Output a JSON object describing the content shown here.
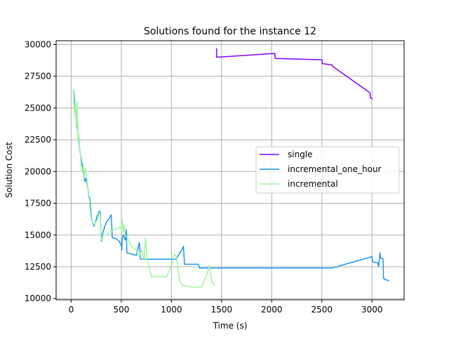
{
  "chart_data": {
    "type": "line",
    "title": "Solutions found for the instance 12",
    "xlabel": "Time (s)",
    "ylabel": "Solution Cost",
    "xlim": [
      -150,
      3320
    ],
    "ylim": [
      9900,
      30300
    ],
    "xticks": [
      0,
      500,
      1000,
      1500,
      2000,
      2500,
      3000
    ],
    "yticks": [
      10000,
      12500,
      15000,
      17500,
      20000,
      22500,
      25000,
      27500,
      30000
    ],
    "grid": true,
    "legend_position": "center-right",
    "series": [
      {
        "name": "single",
        "color": "#7f00ff",
        "x": [
          1450,
          1450,
          1455,
          2030,
          2035,
          2500,
          2505,
          2600,
          2605,
          2980,
          2985,
          3005
        ],
        "y": [
          29700,
          29000,
          29000,
          29300,
          28900,
          28800,
          28500,
          28400,
          28300,
          26200,
          25800,
          25700
        ]
      },
      {
        "name": "incremental_one_hour",
        "color": "#1996f3",
        "x": [
          20,
          30,
          38,
          45,
          52,
          60,
          68,
          75,
          82,
          90,
          100,
          110,
          120,
          130,
          140,
          150,
          160,
          170,
          180,
          185,
          190,
          200,
          210,
          230,
          260,
          280,
          290,
          300,
          305,
          310,
          320,
          350,
          380,
          400,
          410,
          450,
          480,
          490,
          500,
          505,
          510,
          520,
          540,
          550,
          555,
          560,
          600,
          650,
          680,
          690,
          700,
          720,
          1050,
          1060,
          1100,
          1120,
          1130,
          1270,
          1280,
          2600,
          3000,
          3005,
          3060,
          3065,
          3080,
          3085,
          3110,
          3115,
          3130,
          3170
        ],
        "y": [
          26500,
          26000,
          25000,
          24500,
          24000,
          23500,
          23000,
          22500,
          22000,
          21500,
          21000,
          20500,
          20000,
          19500,
          19200,
          19500,
          19000,
          18500,
          17800,
          18000,
          17500,
          16500,
          16000,
          15700,
          16500,
          16900,
          16800,
          14500,
          14600,
          15000,
          15300,
          16000,
          16300,
          16600,
          14800,
          14700,
          14500,
          14300,
          14200,
          13800,
          14800,
          15000,
          14600,
          15400,
          13600,
          13600,
          13500,
          13400,
          14400,
          13100,
          13100,
          13100,
          13100,
          13300,
          13800,
          14100,
          12700,
          12700,
          12400,
          12400,
          13300,
          12900,
          12800,
          12500,
          13600,
          13200,
          13100,
          11600,
          11500,
          11400
        ]
      },
      {
        "name": "incremental",
        "color": "#9ef49e",
        "x": [
          20,
          28,
          36,
          44,
          52,
          60,
          68,
          76,
          84,
          92,
          100,
          110,
          120,
          130,
          140,
          150,
          160,
          170,
          180,
          190,
          200,
          210,
          230,
          260,
          280,
          290,
          300,
          320,
          350,
          400,
          450,
          500,
          510,
          520,
          530,
          540,
          560,
          600,
          650,
          680,
          700,
          730,
          740,
          760,
          800,
          950,
          1000,
          1030,
          1050,
          1080,
          1100,
          1150,
          1200,
          1300,
          1320,
          1350,
          1380,
          1400,
          1420,
          1430
        ],
        "y": [
          26500,
          25500,
          24500,
          25200,
          23500,
          25500,
          22500,
          23000,
          22000,
          21500,
          20500,
          20000,
          20500,
          19500,
          20300,
          19800,
          19200,
          18500,
          18000,
          16800,
          16300,
          16000,
          15800,
          16200,
          16800,
          16500,
          14600,
          15000,
          15000,
          15300,
          15500,
          15600,
          16200,
          15200,
          15800,
          14900,
          14800,
          14100,
          13800,
          13300,
          13900,
          13000,
          14800,
          13000,
          11700,
          11700,
          12600,
          13500,
          13300,
          11500,
          11100,
          11000,
          10900,
          10900,
          11300,
          11800,
          12600,
          11300,
          11200,
          11000
        ]
      }
    ]
  }
}
